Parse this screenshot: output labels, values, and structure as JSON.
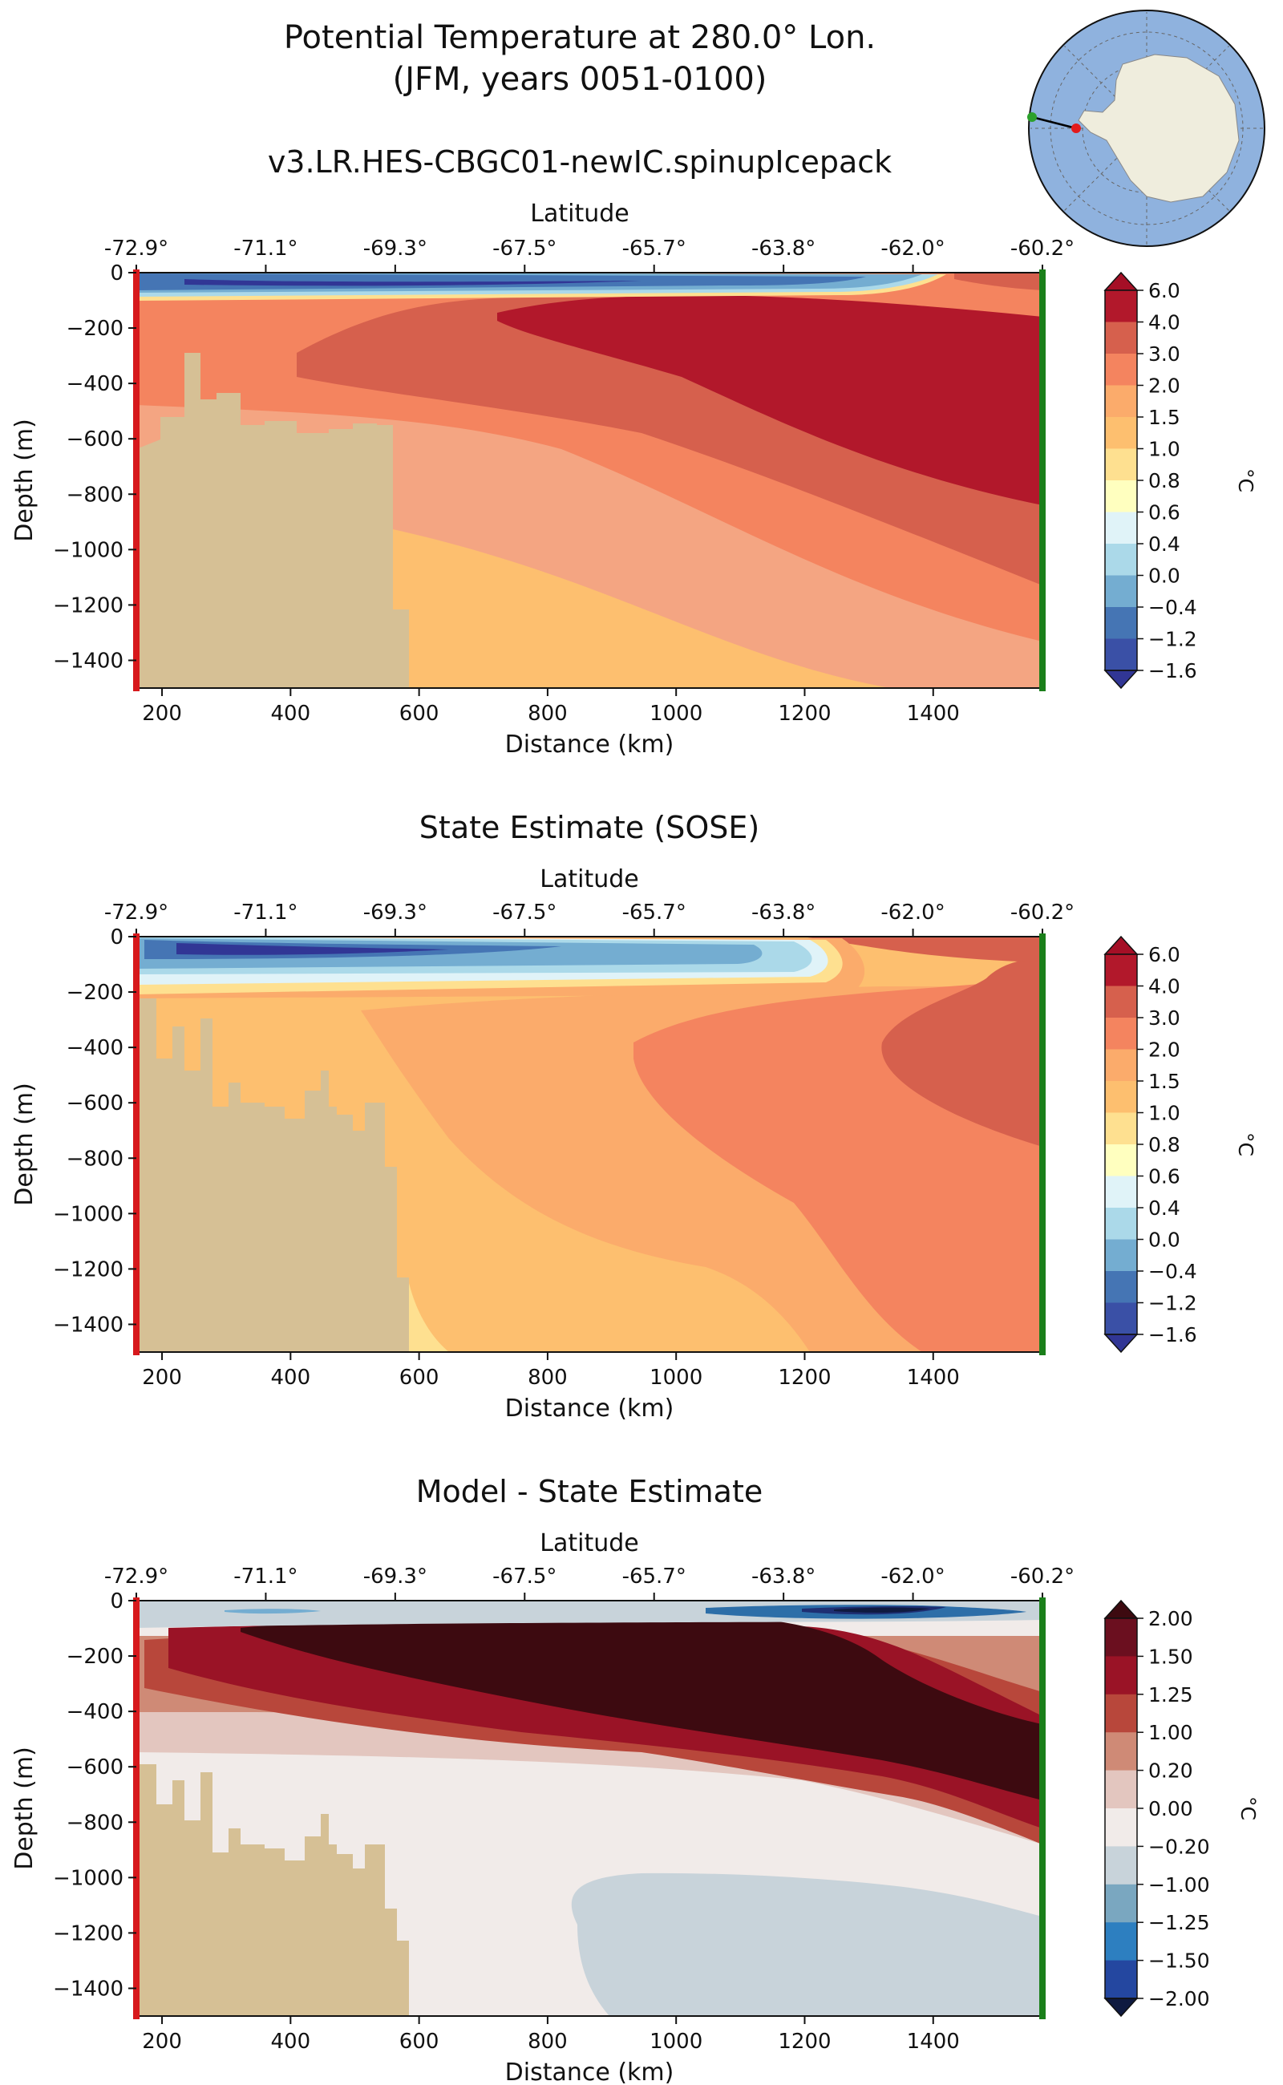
{
  "figure": {
    "title_line1": "Potential Temperature at 280.0° Lon.",
    "title_line2": "(JFM, years 0051-0100)",
    "inset": {
      "description_icon": "antarctica-map-icon"
    }
  },
  "colors": {
    "bathymetry": "#d6c095",
    "start_marker": "#d7191c",
    "end_marker": "#1a7f1a"
  },
  "chart_data": [
    {
      "type": "contourf",
      "title": "v3.LR.HES-CBGC01-newIC.spinupIcepack",
      "xlabel": "Distance (km)",
      "ylabel": "Depth (m)",
      "top_xlabel": "Latitude",
      "xticks": [
        "200",
        "400",
        "600",
        "800",
        "1000",
        "1200",
        "1400"
      ],
      "xtick_values": [
        200,
        400,
        600,
        800,
        1000,
        1200,
        1400
      ],
      "latitude_ticks": [
        "-72.9°",
        "-71.1°",
        "-69.3°",
        "-67.5°",
        "-65.7°",
        "-63.8°",
        "-62.0°",
        "-60.2°"
      ],
      "yticks": [
        "0",
        "−200",
        "−400",
        "−600",
        "−800",
        "−1000",
        "−1200",
        "−1400"
      ],
      "ytick_values": [
        0,
        -200,
        -400,
        -600,
        -800,
        -1000,
        -1200,
        -1400
      ],
      "xlim": [
        160,
        1570
      ],
      "ylim": [
        -1500,
        0
      ],
      "colorbar": {
        "unit": "°C",
        "levels": [
          "6.0",
          "4.0",
          "3.0",
          "2.0",
          "1.5",
          "1.0",
          "0.8",
          "0.6",
          "0.4",
          "0.0",
          "−0.4",
          "−1.2",
          "−1.6"
        ],
        "colors": [
          "#b2182b",
          "#d6604d",
          "#f4a582",
          "#fdbf6f",
          "#fee090",
          "#ffffbf",
          "#e0f3f8",
          "#abd9e9",
          "#74add1",
          "#4575b4",
          "#313695"
        ]
      }
    },
    {
      "type": "contourf",
      "title": "State Estimate (SOSE)",
      "xlabel": "Distance (km)",
      "ylabel": "Depth (m)",
      "top_xlabel": "Latitude",
      "xticks": [
        "200",
        "400",
        "600",
        "800",
        "1000",
        "1200",
        "1400"
      ],
      "xtick_values": [
        200,
        400,
        600,
        800,
        1000,
        1200,
        1400
      ],
      "latitude_ticks": [
        "-72.9°",
        "-71.1°",
        "-69.3°",
        "-67.5°",
        "-65.7°",
        "-63.8°",
        "-62.0°",
        "-60.2°"
      ],
      "yticks": [
        "0",
        "−200",
        "−400",
        "−600",
        "−800",
        "−1000",
        "−1200",
        "−1400"
      ],
      "ytick_values": [
        0,
        -200,
        -400,
        -600,
        -800,
        -1000,
        -1200,
        -1400
      ],
      "xlim": [
        160,
        1570
      ],
      "ylim": [
        -1500,
        0
      ],
      "colorbar": {
        "unit": "°C",
        "levels": [
          "6.0",
          "4.0",
          "3.0",
          "2.0",
          "1.5",
          "1.0",
          "0.8",
          "0.6",
          "0.4",
          "0.0",
          "−0.4",
          "−1.2",
          "−1.6"
        ]
      }
    },
    {
      "type": "contourf",
      "title": "Model - State Estimate",
      "xlabel": "Distance (km)",
      "ylabel": "Depth (m)",
      "top_xlabel": "Latitude",
      "xticks": [
        "200",
        "400",
        "600",
        "800",
        "1000",
        "1200",
        "1400"
      ],
      "xtick_values": [
        200,
        400,
        600,
        800,
        1000,
        1200,
        1400
      ],
      "latitude_ticks": [
        "-72.9°",
        "-71.1°",
        "-69.3°",
        "-67.5°",
        "-65.7°",
        "-63.8°",
        "-62.0°",
        "-60.2°"
      ],
      "yticks": [
        "0",
        "−200",
        "−400",
        "−600",
        "−800",
        "−1000",
        "−1200",
        "−1400"
      ],
      "ytick_values": [
        0,
        -200,
        -400,
        -600,
        -800,
        -1000,
        -1200,
        -1400
      ],
      "xlim": [
        160,
        1570
      ],
      "ylim": [
        -1500,
        0
      ],
      "colorbar": {
        "unit": "°C",
        "levels": [
          "2.00",
          "1.50",
          "1.25",
          "1.00",
          "0.20",
          "0.00",
          "−0.20",
          "−1.00",
          "−1.25",
          "−1.50",
          "−2.00"
        ]
      }
    }
  ]
}
